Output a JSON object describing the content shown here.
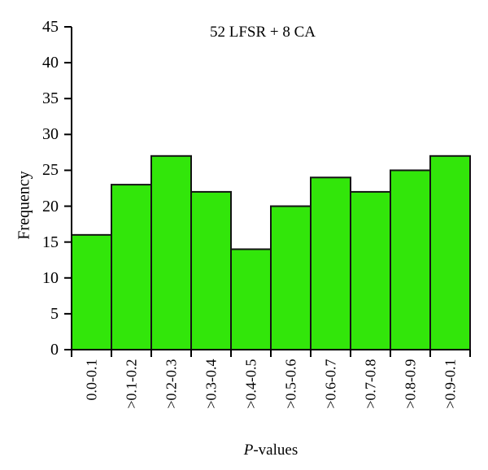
{
  "figure": {
    "background": "#ffffff"
  },
  "chart_data": {
    "type": "bar",
    "title": "52 LFSR + 8 CA",
    "categories": [
      "0.0-0.1",
      ">0.1-0.2",
      ">0.2-0.3",
      ">0.3-0.4",
      ">0.4-0.5",
      ">0.5-0.6",
      ">0.6-0.7",
      ">0.7-0.8",
      ">0.8-0.9",
      ">0.9-0.1"
    ],
    "values": [
      16,
      23,
      27,
      22,
      14,
      20,
      24,
      22,
      25,
      27
    ],
    "xlabel": "P-values",
    "xlabel_italic": "P",
    "xlabel_rest": "-values",
    "ylabel": "Frequency",
    "ylim": [
      0,
      45
    ],
    "yticks": [
      0,
      5,
      10,
      15,
      20,
      25,
      30,
      35,
      40,
      45
    ],
    "grid": false,
    "legend": "none",
    "bar_fill": "#32e60a",
    "bar_stroke": "#141414",
    "axis_color": "#000000"
  }
}
